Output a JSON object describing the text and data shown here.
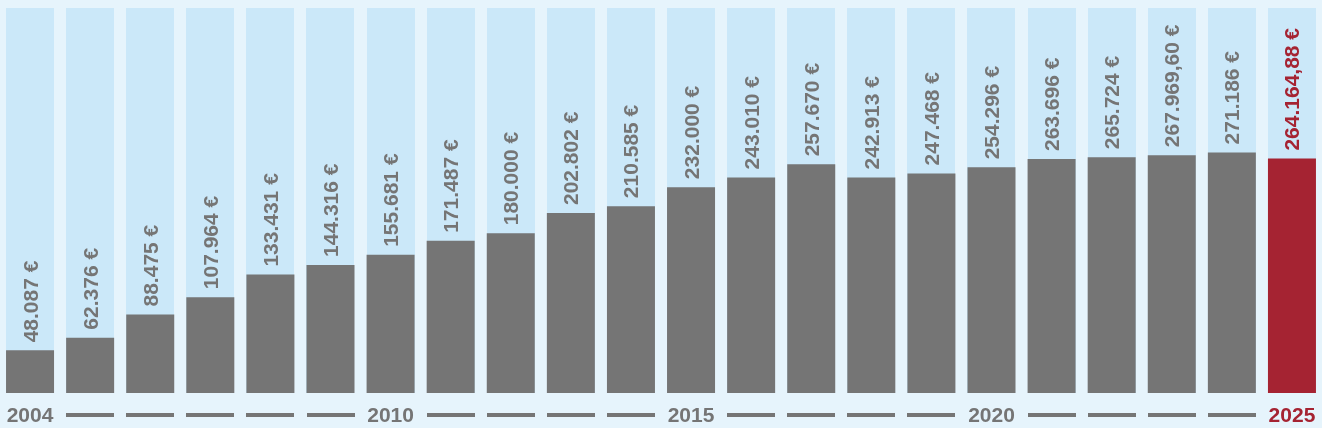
{
  "chart_data": {
    "type": "bar",
    "categories": [
      "2004",
      null,
      null,
      null,
      null,
      null,
      "2010",
      null,
      null,
      null,
      null,
      "2015",
      null,
      null,
      null,
      null,
      "2020",
      null,
      null,
      null,
      null,
      "2025"
    ],
    "values": [
      48087,
      62376,
      88475,
      107964,
      133431,
      144316,
      155681,
      171487,
      180000,
      202802,
      210585,
      232000,
      243010,
      257670,
      242913,
      247468,
      254296,
      263696,
      265724,
      267969.6,
      271186,
      264164.88
    ],
    "colors": [
      "#757575",
      "#757575",
      "#757575",
      "#757575",
      "#757575",
      "#757575",
      "#757575",
      "#757575",
      "#757575",
      "#757575",
      "#757575",
      "#757575",
      "#757575",
      "#757575",
      "#757575",
      "#757575",
      "#757575",
      "#757575",
      "#757575",
      "#757575",
      "#757575",
      "#a52332"
    ],
    "value_labels": [
      "48.087 €",
      "62.376 €",
      "88.475 €",
      "107.964 €",
      "133.431 €",
      "144.316 €",
      "155.681 €",
      "171.487 €",
      "180.000 €",
      "202.802 €",
      "210.585 €",
      "232.000 €",
      "243.010 €",
      "257.670 €",
      "242.913 €",
      "247.468 €",
      "254.296 €",
      "263.696 €",
      "265.724 €",
      "267.969,60 €",
      "271.186 €",
      "264.164,88 €"
    ],
    "tick_labels": "x",
    "grid": false
  }
}
